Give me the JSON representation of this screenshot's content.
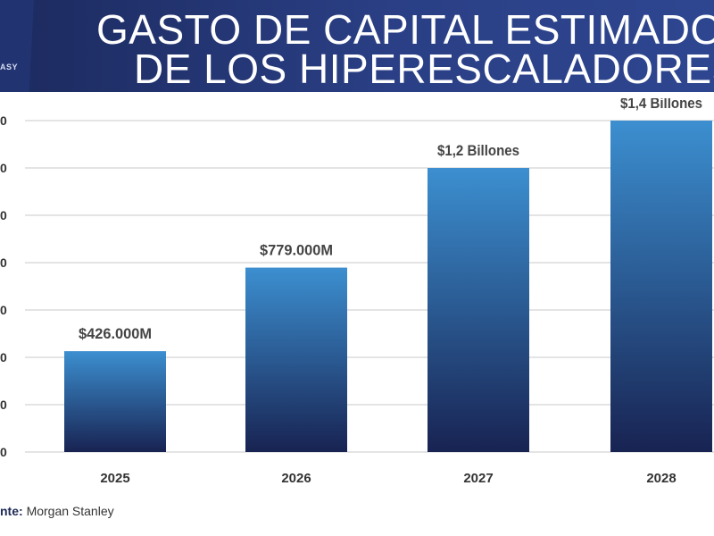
{
  "header": {
    "logo_text": "ASY",
    "title_line1": "GASTO DE CAPITAL ESTIMADO",
    "title_line2": "DE LOS HIPERESCALADORES"
  },
  "colors": {
    "header_bg": "#24367a",
    "bar_top": "#3c8fd0",
    "bar_bottom": "#182352",
    "label_text": "#444444",
    "grid": "#c8c8c8"
  },
  "chart_data": {
    "type": "bar",
    "title": "GASTO DE CAPITAL ESTIMADO DE LOS HIPERESCALADORES",
    "categories": [
      "2025",
      "2026",
      "2027",
      "2028"
    ],
    "values": [
      426,
      779,
      1200,
      1400
    ],
    "data_labels": [
      "$426.000M",
      "$779.000M",
      "$1,2 Billones",
      "$1,4 Billones"
    ],
    "y_tick_labels": [
      "0",
      "0",
      "0",
      "0",
      "0",
      "0",
      "0",
      "0"
    ],
    "ylim": [
      0,
      1750
    ],
    "grid": true,
    "legend": "none"
  },
  "source": {
    "label": "nte:",
    "value": "Morgan Stanley"
  }
}
